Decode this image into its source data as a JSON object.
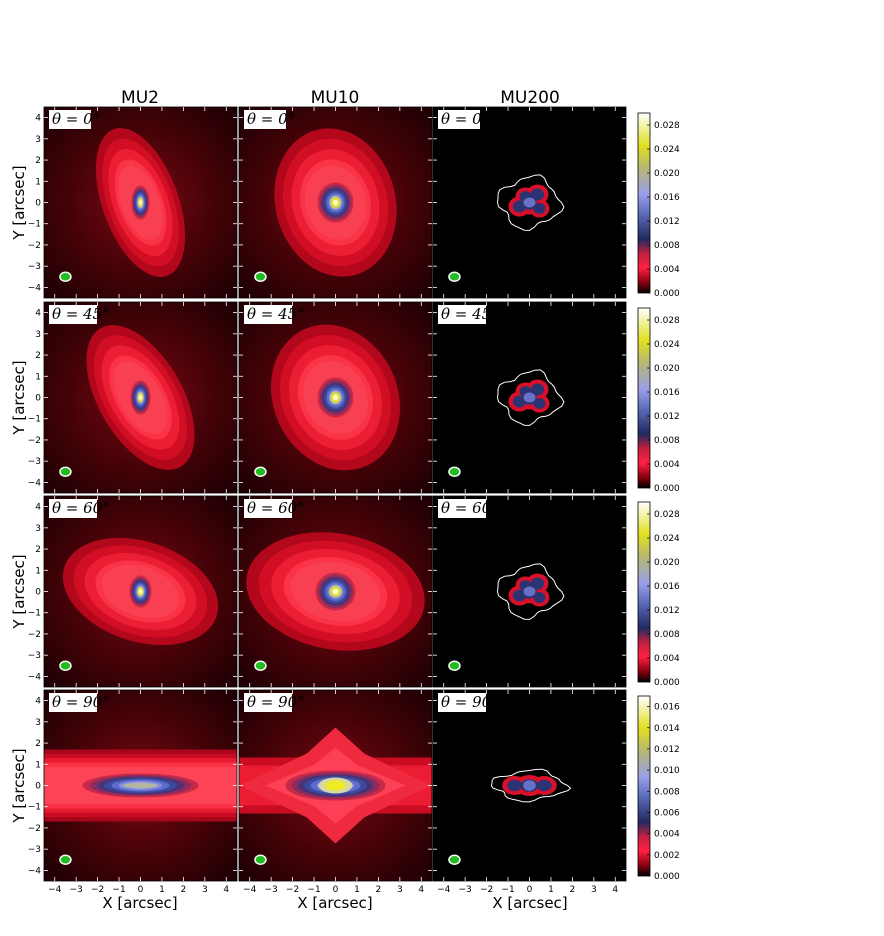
{
  "chart_data": {
    "type": "heatmap",
    "columns": [
      "MU2",
      "MU10",
      "MU200"
    ],
    "rows": [
      {
        "theta_label": "θ = 0°",
        "theta": 0,
        "colorbar": {
          "min": 0,
          "max": 0.03,
          "ticks": [
            "0.000",
            "0.004",
            "0.008",
            "0.012",
            "0.016",
            "0.020",
            "0.024",
            "0.028"
          ]
        }
      },
      {
        "theta_label": "θ = 45°",
        "theta": 45,
        "colorbar": {
          "min": 0,
          "max": 0.03,
          "ticks": [
            "0.000",
            "0.004",
            "0.008",
            "0.012",
            "0.016",
            "0.020",
            "0.024",
            "0.028"
          ]
        }
      },
      {
        "theta_label": "θ = 60°",
        "theta": 60,
        "colorbar": {
          "min": 0,
          "max": 0.03,
          "ticks": [
            "0.000",
            "0.004",
            "0.008",
            "0.012",
            "0.016",
            "0.020",
            "0.024",
            "0.028"
          ]
        }
      },
      {
        "theta_label": "θ = 90°",
        "theta": 90,
        "colorbar": {
          "min": 0,
          "max": 0.017,
          "ticks": [
            "0.000",
            "0.002",
            "0.004",
            "0.006",
            "0.008",
            "0.010",
            "0.012",
            "0.014",
            "0.016"
          ]
        }
      }
    ],
    "xlabel": "X [arcsec]",
    "ylabel": "Y [arcsec]",
    "xlim": [
      -4.5,
      4.5
    ],
    "ylim": [
      -4.5,
      4.5
    ],
    "xticks": [
      "−4",
      "−3",
      "−2",
      "−1",
      "0",
      "1",
      "2",
      "3",
      "4"
    ],
    "yticks": [
      "4",
      "3",
      "2",
      "1",
      "0",
      "−1",
      "−2",
      "−3",
      "−4"
    ],
    "beam_marker": "green ellipse with white outline, lower-left",
    "colormap": [
      "#000000",
      "#d8102a",
      "#ff3045",
      "#283270",
      "#8a92e8",
      "#e8e830",
      "#fefefe"
    ]
  }
}
